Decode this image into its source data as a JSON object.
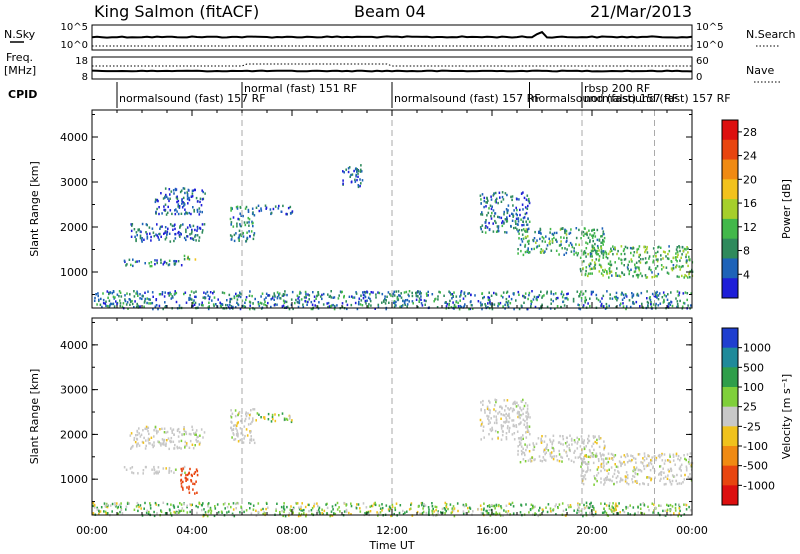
{
  "header": {
    "station": "King Salmon (fitACF)",
    "beam": "Beam 04",
    "date": "21/Mar/2013"
  },
  "summary_panels": {
    "nsky": {
      "label": "N.Sky",
      "ticks": [
        "10^5",
        "10^0"
      ]
    },
    "nsearch": {
      "label": "N.Search",
      "ticks": [
        "10^5",
        "10^0"
      ]
    },
    "freq": {
      "label_line1": "Freq.",
      "label_line2": "[MHz]",
      "ticks": [
        "18",
        "8"
      ]
    },
    "nave": {
      "label": "Nave",
      "ticks": [
        "60",
        "0"
      ]
    },
    "cpid": {
      "label": "CPID"
    }
  },
  "cpid_segments": [
    {
      "name": "normalsound (fast) 157 RF",
      "start_h": 1.0
    },
    {
      "name": "normal (fast) 151 RF",
      "start_h": 6.0
    },
    {
      "name": "normalsound (fast) 157 RF",
      "start_h": 12.0
    },
    {
      "name": "normalsound (fast) 157 RF",
      "start_h": 17.5
    },
    {
      "name": "rbsp 200 RF",
      "start_h": 19.6
    },
    {
      "name": "normalsound (fast) 157 RF",
      "start_h": 19.6
    }
  ],
  "mode_change_lines_h": [
    6.0,
    12.0,
    19.6,
    22.5
  ],
  "chart_data": [
    {
      "type": "heatmap",
      "panel": "power",
      "ylabel": "Slant Range [km]",
      "xlim": [
        0,
        24
      ],
      "ylim": [
        200,
        4600
      ],
      "yticks": [
        1000,
        2000,
        3000,
        4000
      ],
      "colorbar": {
        "label": "Power [dB]",
        "range": [
          0,
          30
        ],
        "ticks": [
          4,
          8,
          12,
          16,
          20,
          24,
          28
        ],
        "colors": [
          "#1f1fd8",
          "#1e63b8",
          "#2f8a5c",
          "#42b84a",
          "#a6cf2b",
          "#f2c21c",
          "#f08a12",
          "#e8450f",
          "#dd0f0f"
        ]
      },
      "echo_regions": [
        {
          "t": [
            1.2,
            3.8
          ],
          "range": [
            1150,
            1300
          ],
          "value": 6
        },
        {
          "t": [
            1.5,
            4.5
          ],
          "range": [
            1700,
            2100
          ],
          "value": 5
        },
        {
          "t": [
            2.5,
            4.5
          ],
          "range": [
            2300,
            2900
          ],
          "value": 5
        },
        {
          "t": [
            3.5,
            4.2
          ],
          "range": [
            1300,
            1400
          ],
          "value": 14
        },
        {
          "t": [
            5.5,
            6.5
          ],
          "range": [
            1700,
            2500
          ],
          "value": 8
        },
        {
          "t": [
            6.5,
            8.0
          ],
          "range": [
            2300,
            2500
          ],
          "value": 5
        },
        {
          "t": [
            10.0,
            10.8
          ],
          "range": [
            2900,
            3400
          ],
          "value": 5
        },
        {
          "t": [
            15.5,
            17.5
          ],
          "range": [
            1900,
            2800
          ],
          "value": 6
        },
        {
          "t": [
            17.0,
            20.5
          ],
          "range": [
            1400,
            2000
          ],
          "value": 9
        },
        {
          "t": [
            19.5,
            24.0
          ],
          "range": [
            900,
            1600
          ],
          "value": 11
        },
        {
          "t": [
            0.0,
            24.0
          ],
          "range": [
            200,
            600
          ],
          "value": 7
        }
      ]
    },
    {
      "type": "heatmap",
      "panel": "velocity",
      "ylabel": "Slant Range [km]",
      "xlabel": "Time UT",
      "xlim": [
        0,
        24
      ],
      "xticks": [
        "00:00",
        "04:00",
        "08:00",
        "12:00",
        "16:00",
        "20:00",
        "00:00"
      ],
      "ylim": [
        200,
        4600
      ],
      "yticks": [
        1000,
        2000,
        3000,
        4000
      ],
      "colorbar": {
        "label": "Velocity [m s⁻¹]",
        "ticks": [
          "1000",
          "500",
          "100",
          "25",
          "-25",
          "-100",
          "-500",
          "-1000"
        ],
        "colors": [
          "#1f3fd0",
          "#1f8a9a",
          "#2f9e4a",
          "#7fcf3a",
          "#c8c8c8",
          "#f0c21c",
          "#f08a12",
          "#e8450f",
          "#dd0f0f"
        ]
      },
      "echo_regions": [
        {
          "t": [
            1.2,
            3.8
          ],
          "range": [
            1150,
            1300
          ],
          "value": 0
        },
        {
          "t": [
            1.5,
            4.5
          ],
          "range": [
            1700,
            2200
          ],
          "value": 0
        },
        {
          "t": [
            3.5,
            4.2
          ],
          "range": [
            700,
            1300
          ],
          "value": -800
        },
        {
          "t": [
            5.5,
            6.5
          ],
          "range": [
            1800,
            2600
          ],
          "value": 0
        },
        {
          "t": [
            6.5,
            8.0
          ],
          "range": [
            2300,
            2500
          ],
          "value": 50
        },
        {
          "t": [
            15.5,
            17.5
          ],
          "range": [
            1900,
            2800
          ],
          "value": 0
        },
        {
          "t": [
            17.0,
            20.5
          ],
          "range": [
            1400,
            2000
          ],
          "value": 0
        },
        {
          "t": [
            19.5,
            24.0
          ],
          "range": [
            900,
            1600
          ],
          "value": 0
        },
        {
          "t": [
            0.0,
            24.0
          ],
          "range": [
            200,
            500
          ],
          "value": 80
        }
      ]
    }
  ]
}
